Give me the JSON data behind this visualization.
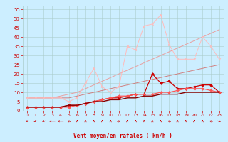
{
  "x": [
    0,
    1,
    2,
    3,
    4,
    5,
    6,
    7,
    8,
    9,
    10,
    11,
    12,
    13,
    14,
    15,
    16,
    17,
    18,
    19,
    20,
    21,
    22,
    23
  ],
  "lines": [
    {
      "color": "#d08080",
      "linewidth": 0.7,
      "marker": null,
      "linestyle": "-",
      "values": [
        7,
        7,
        7,
        7,
        7,
        7,
        8,
        9,
        10,
        11,
        12,
        13,
        14,
        15,
        16,
        17,
        18,
        19,
        20,
        21,
        22,
        23,
        24,
        25
      ]
    },
    {
      "color": "#e8a0a0",
      "linewidth": 0.7,
      "marker": null,
      "linestyle": "-",
      "values": [
        7,
        7,
        7,
        7,
        8,
        9,
        10,
        12,
        14,
        16,
        18,
        20,
        22,
        24,
        26,
        28,
        30,
        32,
        34,
        36,
        38,
        40,
        42,
        44
      ]
    },
    {
      "color": "#ffbbbb",
      "linewidth": 0.7,
      "marker": "x",
      "markersize": 2.0,
      "linestyle": "-",
      "values": [
        7,
        7,
        7,
        7,
        7,
        5,
        7,
        15,
        23,
        13,
        10,
        13,
        35,
        33,
        46,
        47,
        52,
        36,
        28,
        28,
        28,
        40,
        35,
        28
      ]
    },
    {
      "color": "#cc0000",
      "linewidth": 0.9,
      "marker": "D",
      "markersize": 1.8,
      "linestyle": "-",
      "values": [
        2,
        2,
        2,
        2,
        2,
        3,
        3,
        4,
        5,
        6,
        7,
        7,
        8,
        9,
        9,
        20,
        15,
        16,
        12,
        12,
        13,
        14,
        14,
        10
      ]
    },
    {
      "color": "#ff5555",
      "linewidth": 0.9,
      "marker": "D",
      "markersize": 1.8,
      "linestyle": "-",
      "values": [
        2,
        2,
        2,
        2,
        2,
        2,
        3,
        4,
        5,
        6,
        7,
        8,
        8,
        9,
        9,
        9,
        10,
        10,
        11,
        12,
        12,
        12,
        11,
        10
      ]
    },
    {
      "color": "#880000",
      "linewidth": 1.0,
      "marker": null,
      "linestyle": "-",
      "values": [
        2,
        2,
        2,
        2,
        2,
        3,
        3,
        4,
        5,
        5,
        6,
        6,
        7,
        7,
        8,
        8,
        9,
        9,
        9,
        10,
        10,
        10,
        10,
        10
      ]
    }
  ],
  "arrow_directions": [
    225,
    225,
    225,
    270,
    270,
    315,
    0,
    0,
    0,
    0,
    0,
    45,
    0,
    0,
    0,
    0,
    0,
    315,
    0,
    0,
    0,
    0,
    315,
    135
  ],
  "xlim": [
    -0.5,
    23.5
  ],
  "ylim": [
    0,
    57
  ],
  "yticks": [
    0,
    5,
    10,
    15,
    20,
    25,
    30,
    35,
    40,
    45,
    50,
    55
  ],
  "xticks": [
    0,
    1,
    2,
    3,
    4,
    5,
    6,
    7,
    8,
    9,
    10,
    11,
    12,
    13,
    14,
    15,
    16,
    17,
    18,
    19,
    20,
    21,
    22,
    23
  ],
  "xlabel": "Vent moyen/en rafales ( km/h )",
  "background_color": "#cceeff",
  "grid_color": "#aacccc",
  "tick_color": "#cc0000",
  "label_color": "#cc0000"
}
